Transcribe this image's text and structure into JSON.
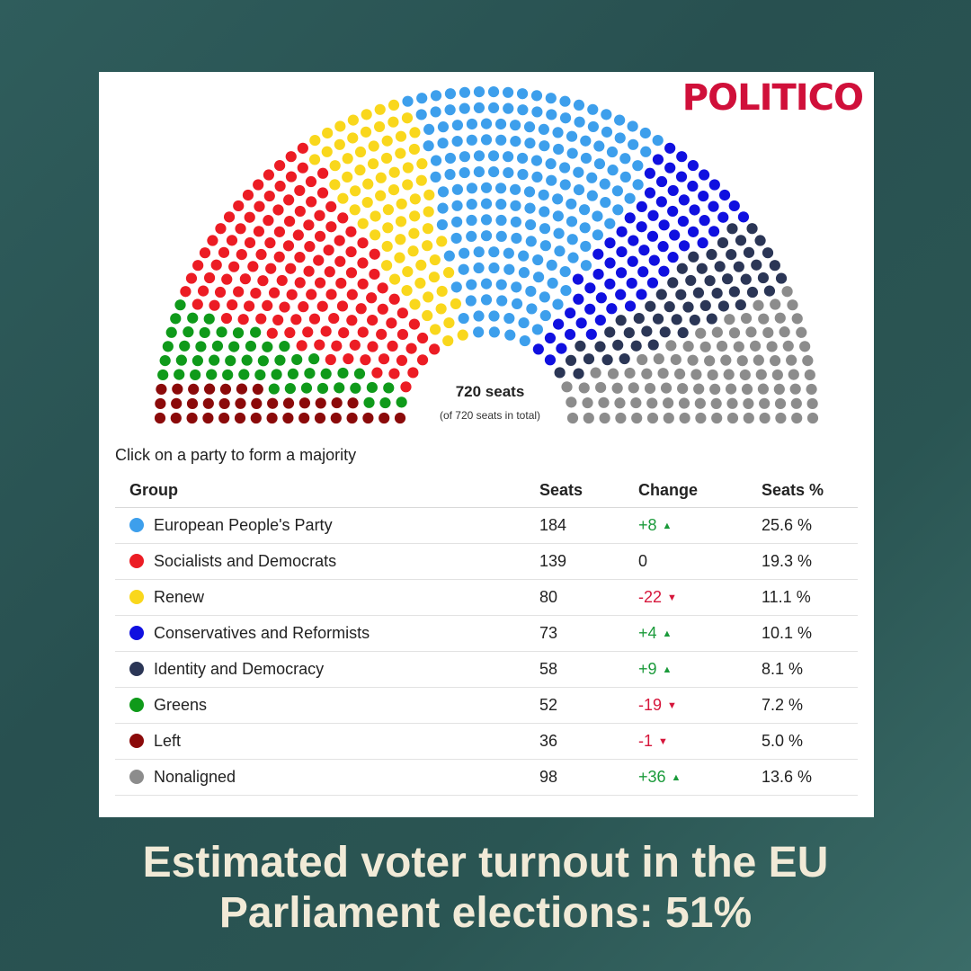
{
  "brand": "POLITICO",
  "chart_data": {
    "type": "parliament",
    "total_label": "720 seats",
    "total_sub": "(of 720 seats in total)",
    "total_seats": 720,
    "series": [
      {
        "name": "Left",
        "seats": 36,
        "color": "#8b0a0a"
      },
      {
        "name": "Greens",
        "seats": 52,
        "color": "#0f9a1a"
      },
      {
        "name": "Socialists and Democrats",
        "seats": 139,
        "color": "#ec1c24"
      },
      {
        "name": "Renew",
        "seats": 80,
        "color": "#f9d71c"
      },
      {
        "name": "European People's Party",
        "seats": 184,
        "color": "#3d9fec"
      },
      {
        "name": "Conservatives and Reformists",
        "seats": 73,
        "color": "#1010e0"
      },
      {
        "name": "Identity and Democracy",
        "seats": 58,
        "color": "#2b3656"
      },
      {
        "name": "Nonaligned",
        "seats": 98,
        "color": "#8c8c8c"
      }
    ]
  },
  "instruction": "Click on a party to form a majority",
  "table": {
    "headers": {
      "group": "Group",
      "seats": "Seats",
      "change": "Change",
      "pct": "Seats %"
    },
    "rows": [
      {
        "group": "European People's Party",
        "color": "#3d9fec",
        "seats": "184",
        "change": "+8",
        "dir": "up",
        "pct": "25.6 %"
      },
      {
        "group": "Socialists and Democrats",
        "color": "#ec1c24",
        "seats": "139",
        "change": "0",
        "dir": "flat",
        "pct": "19.3 %"
      },
      {
        "group": "Renew",
        "color": "#f9d71c",
        "seats": "80",
        "change": "-22",
        "dir": "down",
        "pct": "11.1 %"
      },
      {
        "group": "Conservatives and Reformists",
        "color": "#1010e0",
        "seats": "73",
        "change": "+4",
        "dir": "up",
        "pct": "10.1 %"
      },
      {
        "group": "Identity and Democracy",
        "color": "#2b3656",
        "seats": "58",
        "change": "+9",
        "dir": "up",
        "pct": "8.1 %"
      },
      {
        "group": "Greens",
        "color": "#0f9a1a",
        "seats": "52",
        "change": "-19",
        "dir": "down",
        "pct": "7.2 %"
      },
      {
        "group": "Left",
        "color": "#8b0a0a",
        "seats": "36",
        "change": "-1",
        "dir": "down",
        "pct": "5.0 %"
      },
      {
        "group": "Nonaligned",
        "color": "#8c8c8c",
        "seats": "98",
        "change": "+36",
        "dir": "up",
        "pct": "13.6 %"
      }
    ]
  },
  "headline": {
    "line1": "Estimated voter turnout in the EU",
    "line2": "Parliament elections: 51%"
  }
}
